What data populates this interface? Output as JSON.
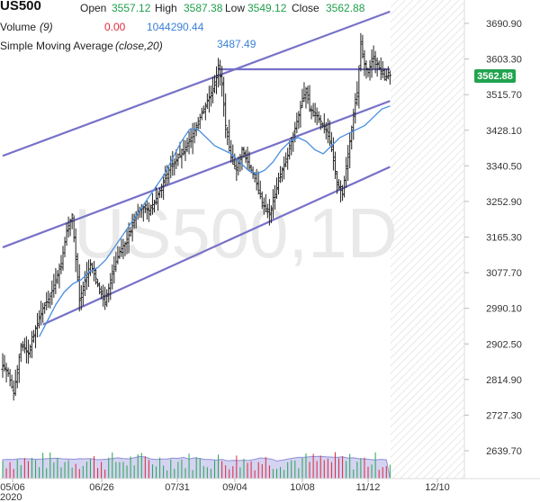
{
  "header": {
    "symbol": "US500",
    "open_label": "Open",
    "open_value": "3557.12",
    "high_label": "High",
    "high_value": "3587.38",
    "low_label": "Low",
    "low_value": "3549.12",
    "close_label": "Close",
    "close_value": "3562.88",
    "volume_label": "Volume",
    "volume_param": "(9)",
    "volume_value": "0.00",
    "volume_ma_value": "1044290.44",
    "sma_label": "Simple Moving Average",
    "sma_param": "(close,20)",
    "sma_value": "3487.49"
  },
  "watermark": "US500,1D",
  "price_tag": "3562.88",
  "colors": {
    "up": "#26a651",
    "down": "#e0283a",
    "bar": "#222222",
    "sma": "#4a8fe0",
    "trendline": "#7671c8",
    "volume_fill": "#c9c8ee",
    "volume_line": "#8f8fd9",
    "price_tag_bg": "#21a34f",
    "forecast_hatch": "#e6e6e6"
  },
  "chart_data": {
    "type": "ohlc",
    "symbol": "US500",
    "timeframe": "1D",
    "y_ticks": [
      "3690.90",
      "3603.30",
      "3515.70",
      "3428.10",
      "3340.50",
      "3252.90",
      "3165.30",
      "3077.70",
      "2990.10",
      "2902.50",
      "2814.90",
      "2727.30",
      "2639.70"
    ],
    "x_ticks": [
      "05/06",
      "06/26",
      "07/31",
      "09/04",
      "10/08",
      "11/12",
      "12/10"
    ],
    "x_year_label": "2020",
    "ylim": [
      2600,
      3710
    ],
    "last_close": 3562.88,
    "price_path": [
      [
        0,
        2850
      ],
      [
        3,
        2830
      ],
      [
        6,
        2780
      ],
      [
        10,
        2900
      ],
      [
        14,
        2880
      ],
      [
        18,
        2940
      ],
      [
        22,
        2990
      ],
      [
        26,
        3020
      ],
      [
        29,
        3060
      ],
      [
        32,
        3100
      ],
      [
        35,
        3180
      ],
      [
        38,
        3220
      ],
      [
        40,
        3110
      ],
      [
        42,
        3010
      ],
      [
        45,
        3060
      ],
      [
        48,
        3100
      ],
      [
        52,
        3050
      ],
      [
        56,
        3000
      ],
      [
        60,
        3080
      ],
      [
        64,
        3130
      ],
      [
        67,
        3150
      ],
      [
        70,
        3180
      ],
      [
        73,
        3220
      ],
      [
        76,
        3240
      ],
      [
        80,
        3230
      ],
      [
        84,
        3260
      ],
      [
        88,
        3300
      ],
      [
        92,
        3340
      ],
      [
        96,
        3360
      ],
      [
        100,
        3380
      ],
      [
        104,
        3420
      ],
      [
        108,
        3460
      ],
      [
        112,
        3500
      ],
      [
        115,
        3530
      ],
      [
        118,
        3580
      ],
      [
        120,
        3540
      ],
      [
        122,
        3440
      ],
      [
        125,
        3360
      ],
      [
        128,
        3330
      ],
      [
        131,
        3380
      ],
      [
        134,
        3350
      ],
      [
        138,
        3310
      ],
      [
        142,
        3250
      ],
      [
        146,
        3220
      ],
      [
        149,
        3270
      ],
      [
        152,
        3320
      ],
      [
        155,
        3350
      ],
      [
        158,
        3400
      ],
      [
        161,
        3450
      ],
      [
        164,
        3500
      ],
      [
        166,
        3530
      ],
      [
        168,
        3480
      ],
      [
        171,
        3470
      ],
      [
        174,
        3450
      ],
      [
        177,
        3430
      ],
      [
        180,
        3380
      ],
      [
        183,
        3300
      ],
      [
        186,
        3270
      ],
      [
        188,
        3340
      ],
      [
        190,
        3400
      ],
      [
        192,
        3470
      ],
      [
        194,
        3520
      ],
      [
        196,
        3640
      ],
      [
        198,
        3590
      ],
      [
        200,
        3570
      ],
      [
        203,
        3610
      ],
      [
        206,
        3580
      ],
      [
        209,
        3560
      ],
      [
        212,
        3562.88
      ]
    ],
    "sma": {
      "name": "Simple Moving Average (close,20)",
      "start_index": 20,
      "values": [
        2920,
        2960,
        3000,
        3030,
        3050,
        3060,
        3080,
        3090,
        3110,
        3140,
        3170,
        3200,
        3230,
        3260,
        3290,
        3320,
        3360,
        3400,
        3430,
        3430,
        3410,
        3390,
        3380,
        3370,
        3350,
        3330,
        3320,
        3330,
        3350,
        3380,
        3400,
        3410,
        3400,
        3380,
        3370,
        3390,
        3410,
        3420,
        3430,
        3440,
        3460,
        3480,
        3487.49
      ]
    },
    "volume_ma_value": 1044290.44,
    "trendlines": [
      {
        "name": "upper-channel",
        "points": [
          [
            0,
            3365
          ],
          [
            212,
            3720
          ]
        ]
      },
      {
        "name": "resistance",
        "points": [
          [
            118,
            3578
          ],
          [
            212,
            3578
          ]
        ]
      },
      {
        "name": "middle-channel",
        "points": [
          [
            0,
            3140
          ],
          [
            212,
            3500
          ]
        ]
      },
      {
        "name": "lower-channel",
        "points": [
          [
            22,
            2950
          ],
          [
            212,
            3338
          ]
        ]
      }
    ],
    "forecast_region_start_index": 212
  }
}
